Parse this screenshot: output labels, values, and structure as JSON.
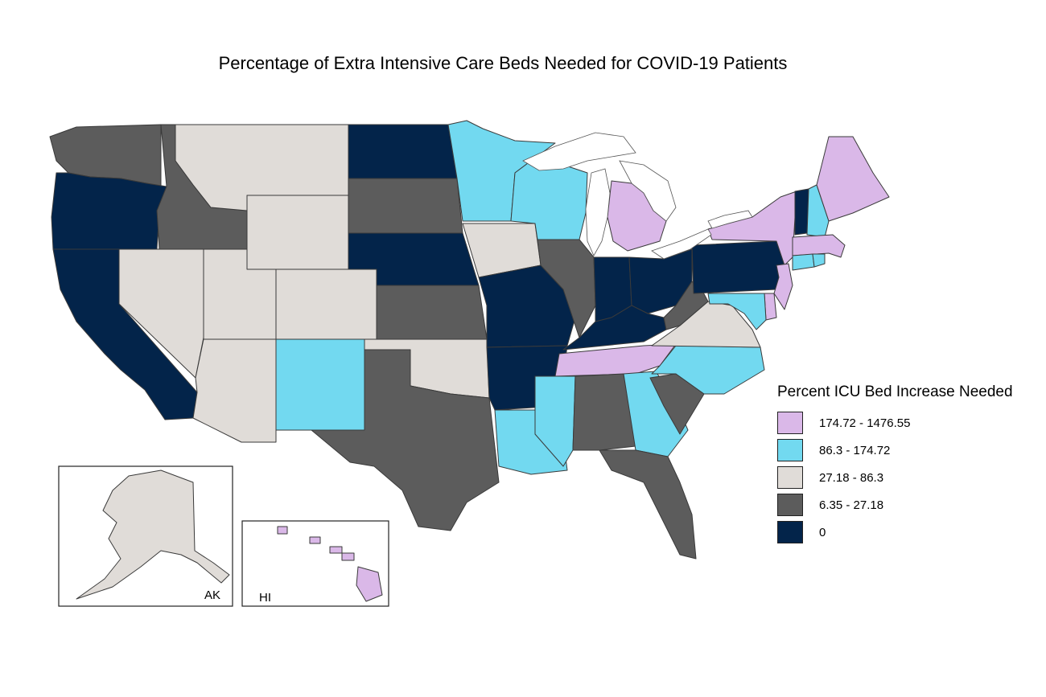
{
  "title": "Percentage of Extra Intensive Care Beds Needed for COVID-19 Patients",
  "legend": {
    "title": "Percent ICU Bed Increase Needed",
    "classes": [
      {
        "label": "174.72 - 1476.55",
        "color": "#dab8e8"
      },
      {
        "label": "86.3 - 174.72",
        "color": "#72d9f0"
      },
      {
        "label": "27.18 - 86.3",
        "color": "#e0dcd8"
      },
      {
        "label": "6.35 - 27.18",
        "color": "#5c5c5c"
      },
      {
        "label": "0",
        "color": "#03244a"
      }
    ]
  },
  "insets": {
    "alaska_label": "AK",
    "hawaii_label": "HI"
  },
  "states": [
    {
      "abbr": "WA",
      "class": 3
    },
    {
      "abbr": "OR",
      "class": 4
    },
    {
      "abbr": "CA",
      "class": 4
    },
    {
      "abbr": "ID",
      "class": 3
    },
    {
      "abbr": "NV",
      "class": 2
    },
    {
      "abbr": "MT",
      "class": 2
    },
    {
      "abbr": "WY",
      "class": 2
    },
    {
      "abbr": "UT",
      "class": 2
    },
    {
      "abbr": "AZ",
      "class": 2
    },
    {
      "abbr": "CO",
      "class": 2
    },
    {
      "abbr": "NM",
      "class": 1
    },
    {
      "abbr": "ND",
      "class": 4
    },
    {
      "abbr": "SD",
      "class": 3
    },
    {
      "abbr": "NE",
      "class": 4
    },
    {
      "abbr": "KS",
      "class": 3
    },
    {
      "abbr": "OK",
      "class": 2
    },
    {
      "abbr": "TX",
      "class": 3
    },
    {
      "abbr": "MN",
      "class": 1
    },
    {
      "abbr": "IA",
      "class": 2
    },
    {
      "abbr": "MO",
      "class": 4
    },
    {
      "abbr": "AR",
      "class": 4
    },
    {
      "abbr": "LA",
      "class": 1
    },
    {
      "abbr": "WI",
      "class": 1
    },
    {
      "abbr": "IL",
      "class": 3
    },
    {
      "abbr": "MI",
      "class": 0
    },
    {
      "abbr": "IN",
      "class": 4
    },
    {
      "abbr": "OH",
      "class": 4
    },
    {
      "abbr": "KY",
      "class": 4
    },
    {
      "abbr": "TN",
      "class": 0
    },
    {
      "abbr": "MS",
      "class": 1
    },
    {
      "abbr": "AL",
      "class": 3
    },
    {
      "abbr": "GA",
      "class": 1
    },
    {
      "abbr": "FL",
      "class": 3
    },
    {
      "abbr": "SC",
      "class": 3
    },
    {
      "abbr": "NC",
      "class": 1
    },
    {
      "abbr": "VA",
      "class": 2
    },
    {
      "abbr": "WV",
      "class": 3
    },
    {
      "abbr": "PA",
      "class": 4
    },
    {
      "abbr": "NY",
      "class": 0
    },
    {
      "abbr": "VT",
      "class": 4
    },
    {
      "abbr": "NH",
      "class": 1
    },
    {
      "abbr": "ME",
      "class": 0
    },
    {
      "abbr": "MA",
      "class": 0
    },
    {
      "abbr": "CT",
      "class": 1
    },
    {
      "abbr": "RI",
      "class": 1
    },
    {
      "abbr": "NJ",
      "class": 0
    },
    {
      "abbr": "DE",
      "class": 0
    },
    {
      "abbr": "MD",
      "class": 1
    },
    {
      "abbr": "AK",
      "class": 2
    },
    {
      "abbr": "HI",
      "class": 0
    }
  ]
}
